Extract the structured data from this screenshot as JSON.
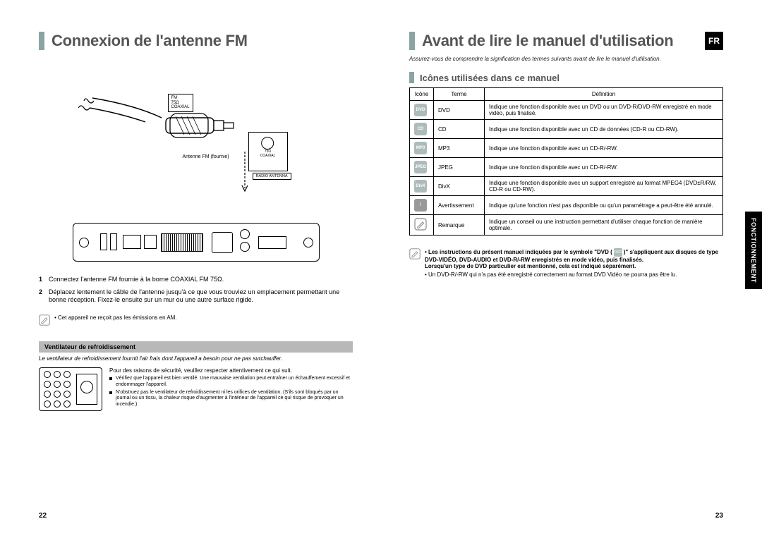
{
  "left": {
    "title": "Connexion de l'antenne FM",
    "diagram": {
      "fm_label": "FM\n75Ω\nCOAXIAL",
      "antenna_caption": "Antenne FM (fournie)",
      "jack_small_top": "75Ω",
      "jack_small_bot": "COAXIAL",
      "radio_label": "RADIO ANTENNA"
    },
    "steps": [
      {
        "n": "1",
        "text": "Connectez l'antenne FM fournie à la borne COAXIAL FM 75Ω."
      },
      {
        "n": "2",
        "text": "Déplacez lentement le câble de l'antenne jusqu'à ce que vous trouviez un emplacement permettant une bonne réception. Fixez-le ensuite sur un mur ou une autre surface rigide."
      }
    ],
    "am_note": "• Cet appareil ne reçoit pas les émissions en AM.",
    "fan_heading": "Ventilateur de refroidissement",
    "fan_intro": "Le ventilateur de refroidissement fournit l'air frais dont l'appareil a besoin pour ne pas surchauffer.",
    "fan_lead": "Pour des raisons de sécurité, veuillez respecter attentivement ce qui suit.",
    "fan_bullets": [
      "Vérifiez que l'appareil est bien ventilé. Une mauvaise ventilation peut entraîner un échauffement excessif et endommager l'appareil.",
      "N'obstruez pas le ventilateur de refroidissement ni les orifices de ventilation. (S'ils sont bloqués par un journal ou un tissu, la chaleur risque d'augmenter à l'intérieur de l'appareil ce qui risque de provoquer un incendie.)"
    ],
    "pagenum": "22"
  },
  "right": {
    "title": "Avant de lire le manuel d'utilisation",
    "lang_badge": "FR",
    "intro": "Assurez-vous de comprendre la signification des termes suivants avant de lire le manuel d'utilisation.",
    "subheading": "Icônes utilisées dans ce manuel",
    "table": {
      "headers": [
        "Icône",
        "Terme",
        "Définition"
      ],
      "rows": [
        {
          "icon": "DVD",
          "term": "DVD",
          "def": "Indique une fonction disponible avec un DVD ou un DVD-R/DVD-RW enregistré en mode vidéo, puis finalisé."
        },
        {
          "icon": "CD",
          "term": "CD",
          "def": "Indique une fonction disponible avec un CD de données (CD-R ou CD-RW)."
        },
        {
          "icon": "MP3",
          "term": "MP3",
          "def": "Indique une fonction disponible avec un CD-R/-RW."
        },
        {
          "icon": "JPEG",
          "term": "JPEG",
          "def": "Indique une fonction disponible avec un CD-R/-RW."
        },
        {
          "icon": "DivX",
          "term": "DivX",
          "def": "Indique une fonction disponible avec un support enregistré au format MPEG4 (DVD±R/RW, CD-R ou CD-RW)."
        },
        {
          "icon": "!",
          "term": "Avertissement",
          "def": "Indique qu'une fonction n'est pas disponible ou qu'un paramétrage a peut-être été annulé."
        },
        {
          "icon": "✎",
          "term": "Remarque",
          "def": "Indique un conseil ou une instruction permettant d'utiliser chaque fonction de manière optimale."
        }
      ]
    },
    "notes": {
      "bold_a": "• Les instructions du présent manuel indiquées par le symbole \"DVD (",
      "bold_b": ")\" s'appliquent aux disques de type DVD-VIDÉO, DVD-AUDIO et DVD-R/-RW enregistrés en mode vidéo, puis finalisés.",
      "bold_c": "Lorsqu'un type de DVD particulier est mentionné, cela est indiqué séparément.",
      "line2": "• Un DVD-R/-RW qui n'a pas été enregistré correctement au format DVD Vidéo ne pourra pas être lu."
    },
    "side_tab": "FONCTIONNEMENT",
    "pagenum": "23"
  },
  "colors": {
    "accent": "#8ca3a3",
    "grey_block": "#b8b8b8",
    "icon_bg": "#aebbbb"
  }
}
